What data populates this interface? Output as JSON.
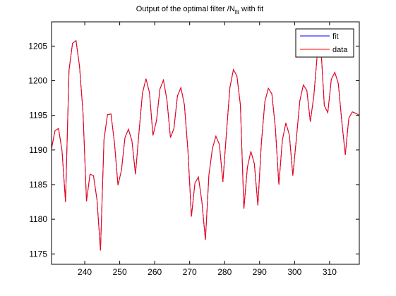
{
  "chart_data": {
    "type": "line",
    "title": "Output of the optimal filter /N",
    "title_sub": "fit",
    "title_suffix": " with fit",
    "xlabel": "",
    "ylabel": "",
    "xlim": [
      230.5,
      318.5
    ],
    "ylim": [
      1173.5,
      1208.5
    ],
    "xticks": [
      240,
      250,
      260,
      270,
      280,
      290,
      300,
      310
    ],
    "yticks": [
      1175,
      1180,
      1185,
      1190,
      1195,
      1200,
      1205
    ],
    "grid": false,
    "legend_position": "top-right",
    "x": [
      230.5,
      231.5,
      232.5,
      233.5,
      234.5,
      235.5,
      236.5,
      237.5,
      238.5,
      239.5,
      240.5,
      241.5,
      242.5,
      243.5,
      244.5,
      245.5,
      246.5,
      247.5,
      248.5,
      249.5,
      250.5,
      251.5,
      252.5,
      253.5,
      254.5,
      255.5,
      256.5,
      257.5,
      258.5,
      259.5,
      260.5,
      261.5,
      262.5,
      263.5,
      264.5,
      265.5,
      266.5,
      267.5,
      268.5,
      269.5,
      270.5,
      271.5,
      272.5,
      273.5,
      274.5,
      275.5,
      276.5,
      277.5,
      278.5,
      279.5,
      280.5,
      281.5,
      282.5,
      283.5,
      284.5,
      285.5,
      286.5,
      287.5,
      288.5,
      289.5,
      290.5,
      291.5,
      292.5,
      293.5,
      294.5,
      295.5,
      296.5,
      297.5,
      298.5,
      299.5,
      300.5,
      301.5,
      302.5,
      303.5,
      304.5,
      305.5,
      306.5,
      307.5,
      308.5,
      309.5,
      310.5,
      311.5,
      312.5,
      313.5,
      314.5,
      315.5,
      316.5,
      317.5,
      318.5
    ],
    "series": [
      {
        "name": "fit",
        "color": "#0000ff",
        "values": [
          1190.2,
          1192.8,
          1193.1,
          1189.9,
          1182.5,
          1201.5,
          1205.4,
          1205.8,
          1202.1,
          1195.4,
          1182.6,
          1186.5,
          1186.3,
          1182.8,
          1175.5,
          1191.5,
          1195.1,
          1195.2,
          1191.0,
          1184.9,
          1187.1,
          1191.8,
          1193.0,
          1191.3,
          1186.5,
          1192.5,
          1198.2,
          1200.3,
          1198.3,
          1192.1,
          1194.2,
          1198.8,
          1200.1,
          1197.2,
          1191.8,
          1193.1,
          1197.8,
          1199.0,
          1196.5,
          1189.9,
          1180.4,
          1185.2,
          1186.1,
          1182.5,
          1177.0,
          1186.4,
          1190.2,
          1192.0,
          1190.8,
          1185.4,
          1192.4,
          1199.0,
          1201.6,
          1200.7,
          1196.5,
          1181.5,
          1187.5,
          1189.8,
          1188.0,
          1182.0,
          1191.0,
          1197.0,
          1198.9,
          1198.1,
          1193.2,
          1185.0,
          1191.4,
          1193.9,
          1192.2,
          1186.3,
          1191.6,
          1197.1,
          1199.4,
          1198.6,
          1194.1,
          1197.8,
          1203.9,
          1205.0,
          1196.4,
          1195.4,
          1200.2,
          1201.2,
          1199.6,
          1194.1,
          1189.3,
          1194.6,
          1195.5,
          1195.3,
          1195.0
        ]
      },
      {
        "name": "data",
        "color": "#ff0000",
        "values": [
          1190.2,
          1192.8,
          1193.1,
          1189.9,
          1182.5,
          1201.5,
          1205.4,
          1205.8,
          1202.1,
          1195.4,
          1182.6,
          1186.5,
          1186.3,
          1182.8,
          1175.5,
          1191.5,
          1195.1,
          1195.2,
          1191.0,
          1184.9,
          1187.1,
          1191.8,
          1193.0,
          1191.3,
          1186.5,
          1192.5,
          1198.2,
          1200.3,
          1198.3,
          1192.1,
          1194.2,
          1198.8,
          1200.1,
          1197.2,
          1191.8,
          1193.1,
          1197.8,
          1199.0,
          1196.5,
          1189.9,
          1180.4,
          1185.2,
          1186.1,
          1182.5,
          1177.0,
          1186.4,
          1190.2,
          1192.0,
          1190.8,
          1185.4,
          1192.4,
          1199.0,
          1201.6,
          1200.7,
          1196.5,
          1181.5,
          1187.5,
          1189.8,
          1188.0,
          1182.0,
          1191.0,
          1197.0,
          1198.9,
          1198.1,
          1193.2,
          1185.0,
          1191.4,
          1193.9,
          1192.2,
          1186.3,
          1191.6,
          1197.1,
          1199.4,
          1198.6,
          1194.1,
          1197.8,
          1203.9,
          1205.0,
          1196.4,
          1195.4,
          1200.2,
          1201.2,
          1199.6,
          1194.1,
          1189.3,
          1194.6,
          1195.5,
          1195.3,
          1195.0
        ]
      }
    ]
  }
}
